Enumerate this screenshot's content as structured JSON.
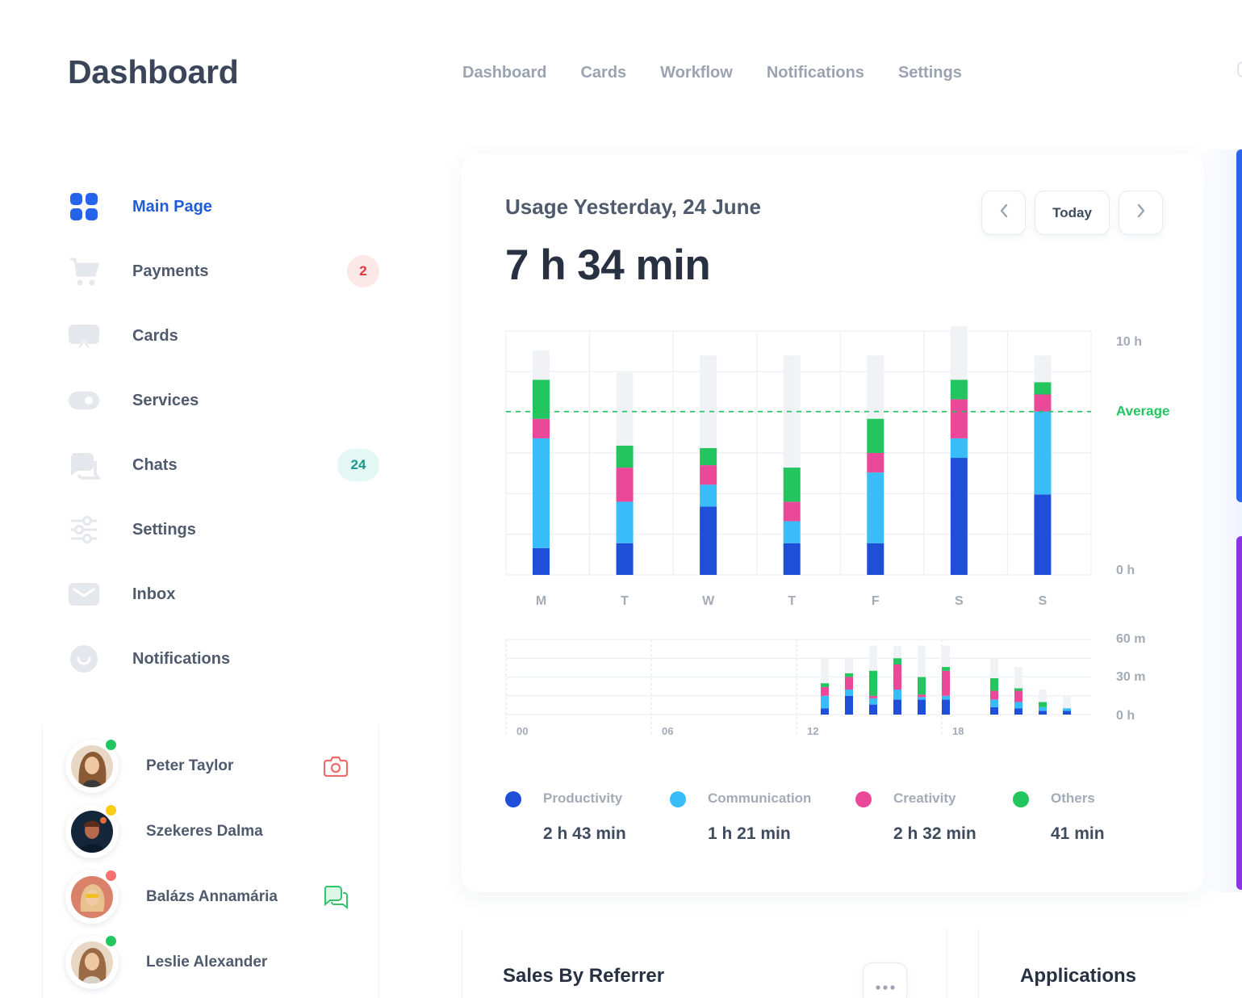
{
  "header": {
    "title": "Dashboard",
    "nav": [
      "Dashboard",
      "Cards",
      "Workflow",
      "Notifications",
      "Settings"
    ]
  },
  "sidebar": {
    "items": [
      {
        "label": "Main Page",
        "icon": "grid-icon",
        "active": true,
        "badge": ""
      },
      {
        "label": "Payments",
        "icon": "cart-icon",
        "active": false,
        "badge": "2"
      },
      {
        "label": "Cards",
        "icon": "card-icon",
        "active": false,
        "badge": ""
      },
      {
        "label": "Services",
        "icon": "toggle-icon",
        "active": false,
        "badge": ""
      },
      {
        "label": "Chats",
        "icon": "chat-icon",
        "active": false,
        "badge": "24"
      },
      {
        "label": "Settings",
        "icon": "sliders-icon",
        "active": false,
        "badge": ""
      },
      {
        "label": "Inbox",
        "icon": "mail-icon",
        "active": false,
        "badge": ""
      },
      {
        "label": "Notifications",
        "icon": "smile-icon",
        "active": false,
        "badge": ""
      }
    ]
  },
  "contacts": [
    {
      "name": "Peter Taylor",
      "status_color": "#22c55e",
      "action": "camera-icon"
    },
    {
      "name": "Szekeres Dalma",
      "status_color": "#facc15",
      "action": ""
    },
    {
      "name": "Balázs Annamária",
      "status_color": "#f87171",
      "action": "chat-icon"
    },
    {
      "name": "Leslie Alexander",
      "status_color": "#22c55e",
      "action": ""
    }
  ],
  "usage": {
    "title": "Usage Yesterday, 24 June",
    "total": "7 h 34 min",
    "prev_icon": "chevron-left-icon",
    "today_label": "Today",
    "next_icon": "chevron-right-icon"
  },
  "chart_data": [
    {
      "type": "bar",
      "stacked": true,
      "categories": [
        "M",
        "T",
        "W",
        "T",
        "F",
        "S",
        "S"
      ],
      "ylim": [
        0,
        10
      ],
      "yticks": [
        "10 h",
        "0 h"
      ],
      "average_label": "Average",
      "average_value": 6.7,
      "capacity": [
        9.2,
        8.3,
        9.0,
        9.0,
        9.0,
        10.2,
        9.0
      ],
      "series": [
        {
          "name": "Productivity",
          "color": "#1f4ed8",
          "values": [
            1.1,
            1.3,
            2.8,
            1.3,
            1.3,
            4.8,
            3.3
          ]
        },
        {
          "name": "Communication",
          "color": "#38bdf8",
          "values": [
            4.5,
            1.7,
            0.9,
            0.9,
            2.9,
            0.8,
            3.4
          ]
        },
        {
          "name": "Creativity",
          "color": "#ec4899",
          "values": [
            0.8,
            1.4,
            0.8,
            0.8,
            0.8,
            1.6,
            0.7
          ]
        },
        {
          "name": "Others",
          "color": "#22c55e",
          "values": [
            1.6,
            0.9,
            0.7,
            1.4,
            1.4,
            0.8,
            0.5
          ]
        }
      ],
      "grid": true
    },
    {
      "type": "bar",
      "stacked": true,
      "x_ticks": [
        "00",
        "06",
        "12",
        "18"
      ],
      "ylim": [
        0,
        60
      ],
      "yticks": [
        "60 m",
        "30 m",
        "0 h"
      ],
      "hours": [
        14,
        15,
        16,
        17,
        18,
        19,
        21,
        22,
        23,
        24
      ],
      "capacity": [
        45,
        45,
        55,
        55,
        55,
        55,
        45,
        38,
        20,
        15
      ],
      "series": [
        {
          "name": "Productivity",
          "color": "#1f4ed8",
          "values": [
            5,
            15,
            8,
            12,
            12,
            12,
            6,
            5,
            3,
            3
          ]
        },
        {
          "name": "Communication",
          "color": "#38bdf8",
          "values": [
            10,
            5,
            5,
            8,
            2,
            3,
            6,
            5,
            3,
            2
          ]
        },
        {
          "name": "Creativity",
          "color": "#ec4899",
          "values": [
            7,
            10,
            2,
            20,
            2,
            20,
            7,
            9,
            0,
            0
          ]
        },
        {
          "name": "Others",
          "color": "#22c55e",
          "values": [
            3,
            3,
            20,
            5,
            14,
            3,
            10,
            2,
            4,
            0
          ]
        }
      ]
    }
  ],
  "legend": [
    {
      "name": "Productivity",
      "value": "2 h 43 min",
      "color": "#1f4ed8"
    },
    {
      "name": "Communication",
      "value": "1 h 21 min",
      "color": "#38bdf8"
    },
    {
      "name": "Creativity",
      "value": "2 h 32 min",
      "color": "#ec4899"
    },
    {
      "name": "Others",
      "value": "41 min",
      "color": "#22c55e"
    }
  ],
  "sales": {
    "title": "Sales By Referrer",
    "more_icon": "more-dots-icon"
  },
  "applications": {
    "title": "Applications"
  }
}
